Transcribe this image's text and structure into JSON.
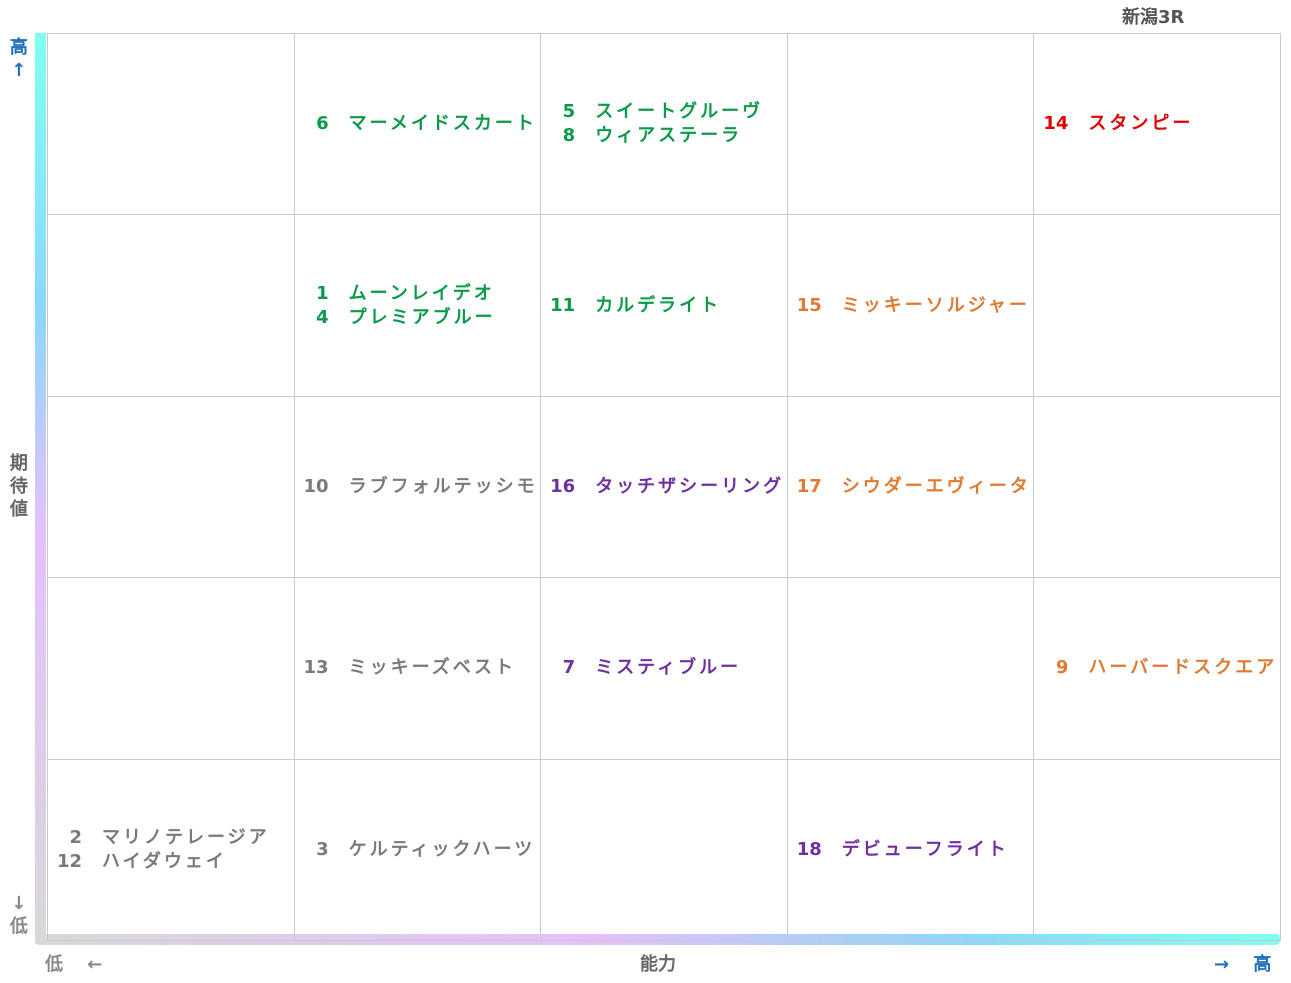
{
  "title": "新潟3R",
  "y_axis": {
    "high": "高↑",
    "label": "期待値",
    "low": "↓低"
  },
  "x_axis": {
    "low": "低 ←",
    "label": "能力",
    "high": "→ 高"
  },
  "grid": {
    "rows": [
      [
        [],
        [
          {
            "number": "6",
            "name": "マーメイドスカート",
            "color": "#0a9a4a"
          }
        ],
        [
          {
            "number": "5",
            "name": "スイートグルーヴ",
            "color": "#0a9a4a"
          },
          {
            "number": "8",
            "name": "ウィアステーラ",
            "color": "#0a9a4a"
          }
        ],
        [],
        [
          {
            "number": "14",
            "name": "スタンピー",
            "color": "#e00000"
          }
        ]
      ],
      [
        [],
        [
          {
            "number": "1",
            "name": "ムーンレイデオ",
            "color": "#0a9a4a"
          },
          {
            "number": "4",
            "name": "プレミアブルー",
            "color": "#0a9a4a"
          }
        ],
        [
          {
            "number": "11",
            "name": "カルデライト",
            "color": "#0a9a4a"
          }
        ],
        [
          {
            "number": "15",
            "name": "ミッキーソルジャー",
            "color": "#e07a30"
          }
        ],
        []
      ],
      [
        [],
        [
          {
            "number": "10",
            "name": "ラブフォルテッシモ",
            "color": "#7a7a7a"
          }
        ],
        [
          {
            "number": "16",
            "name": "タッチザシーリング",
            "color": "#7030a0"
          }
        ],
        [
          {
            "number": "17",
            "name": "シウダーエヴィータ",
            "color": "#e07a30"
          }
        ],
        []
      ],
      [
        [],
        [
          {
            "number": "13",
            "name": "ミッキーズベスト",
            "color": "#7a7a7a"
          }
        ],
        [
          {
            "number": "7",
            "name": "ミスティブルー",
            "color": "#7030a0"
          }
        ],
        [],
        [
          {
            "number": "9",
            "name": "ハーバードスクエア",
            "color": "#e07a30"
          }
        ]
      ],
      [
        [
          {
            "number": "2",
            "name": "マリノテレージア",
            "color": "#7a7a7a"
          },
          {
            "number": "12",
            "name": "ハイダウェイ",
            "color": "#7a7a7a"
          }
        ],
        [
          {
            "number": "3",
            "name": "ケルティックハーツ",
            "color": "#7a7a7a"
          }
        ],
        [],
        [
          {
            "number": "18",
            "name": "デビューフライト",
            "color": "#7030a0"
          }
        ],
        []
      ]
    ]
  }
}
